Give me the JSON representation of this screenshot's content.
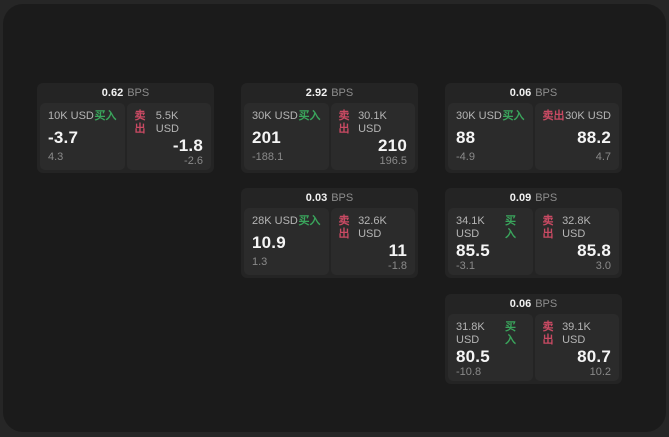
{
  "colors": {
    "backdrop": "#262626",
    "window_bg": "#1b1b1b",
    "card_bg": "#242424",
    "panel_bg": "#2b2b2b",
    "buy_green": "#3aa55c",
    "sell_red": "#c94a63",
    "text_primary": "#f5f5f5",
    "text_secondary": "#b5b5b5",
    "text_muted": "#8a8a8a"
  },
  "cards": [
    {
      "bps": "0.62",
      "bps_unit": "BPS",
      "buy": {
        "amount": "10K USD",
        "side_label": "买入",
        "price": "-3.7",
        "change": "4.3"
      },
      "sell": {
        "side_label": "卖出",
        "amount": "5.5K USD",
        "price": "-1.8",
        "change": "-2.6"
      }
    },
    {
      "bps": "2.92",
      "bps_unit": "BPS",
      "buy": {
        "amount": "30K USD",
        "side_label": "买入",
        "price": "201",
        "change": "-188.1"
      },
      "sell": {
        "side_label": "卖出",
        "amount": "30.1K USD",
        "price": "210",
        "change": "196.5"
      }
    },
    {
      "bps": "0.06",
      "bps_unit": "BPS",
      "buy": {
        "amount": "30K USD",
        "side_label": "买入",
        "price": "88",
        "change": "-4.9"
      },
      "sell": {
        "side_label": "卖出",
        "amount": "30K USD",
        "price": "88.2",
        "change": "4.7"
      }
    },
    {
      "bps": "0.03",
      "bps_unit": "BPS",
      "buy": {
        "amount": "28K USD",
        "side_label": "买入",
        "price": "10.9",
        "change": "1.3"
      },
      "sell": {
        "side_label": "卖出",
        "amount": "32.6K USD",
        "price": "11",
        "change": "-1.8"
      }
    },
    {
      "bps": "0.09",
      "bps_unit": "BPS",
      "buy": {
        "amount": "34.1K USD",
        "side_label": "买入",
        "price": "85.5",
        "change": "-3.1"
      },
      "sell": {
        "side_label": "卖出",
        "amount": "32.8K USD",
        "price": "85.8",
        "change": "3.0"
      }
    },
    {
      "bps": "0.06",
      "bps_unit": "BPS",
      "buy": {
        "amount": "31.8K USD",
        "side_label": "买入",
        "price": "80.5",
        "change": "-10.8"
      },
      "sell": {
        "side_label": "卖出",
        "amount": "39.1K USD",
        "price": "80.7",
        "change": "10.2"
      }
    }
  ]
}
